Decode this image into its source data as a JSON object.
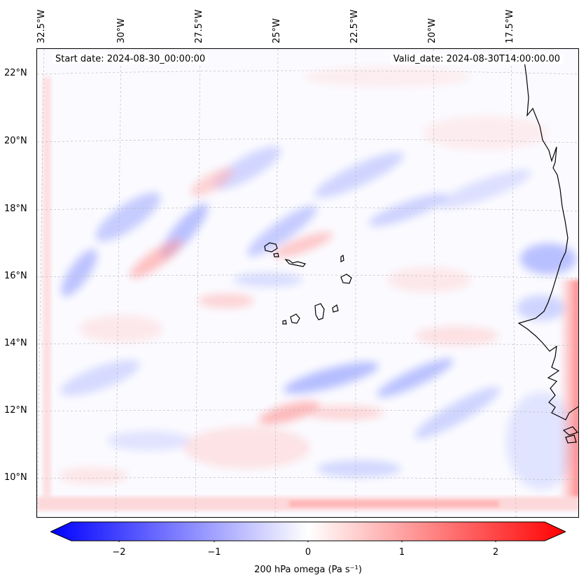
{
  "header": {
    "start_date": "Start date: 2024-08-30_00:00:00",
    "valid_date": "Valid_date: 2024-08-30T14:00:00.00"
  },
  "longitude_labels": [
    "32.5°W",
    "30°W",
    "27.5°W",
    "25°W",
    "22.5°W",
    "20°W",
    "17.5°W"
  ],
  "latitude_labels": [
    "22°N",
    "20°N",
    "18°N",
    "16°N",
    "14°N",
    "12°N",
    "10°N"
  ],
  "colorbar": {
    "label": "200 hPa omega (Pa s⁻¹)",
    "ticks": [
      "−2",
      "−1",
      "0",
      "1",
      "2"
    ],
    "min": -2.5,
    "max": 2.5,
    "colormap": "bwr",
    "negative_color": "#0000ff",
    "zero_color": "#ffffff",
    "positive_color": "#ff0000"
  },
  "map": {
    "variable": "omega",
    "level": "200 hPa",
    "features": [
      "coastline-west-africa",
      "cape-verde-islands"
    ],
    "gridlines": true
  }
}
